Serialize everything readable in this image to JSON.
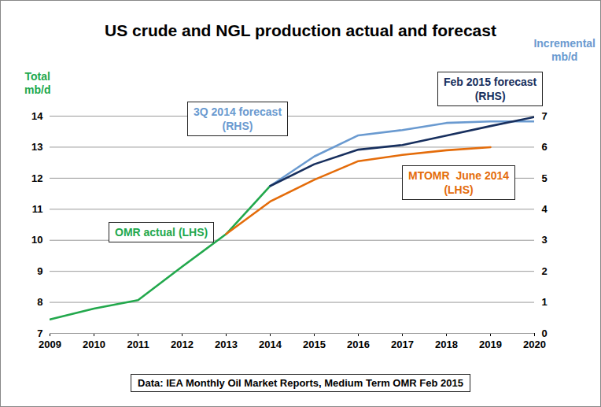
{
  "chart_data": {
    "type": "line",
    "title": "US crude and NGL production actual and forecast",
    "ylabel": "Total\nmb/d",
    "y2label": "Incremental\nmb/d",
    "caption": "Data: IEA Monthly Oil Market Reports, Medium Term OMR Feb 2015",
    "x": [
      2009,
      2010,
      2011,
      2012,
      2013,
      2014,
      2015,
      2016,
      2017,
      2018,
      2019,
      2020
    ],
    "xlim": [
      2009,
      2020
    ],
    "xticks": [
      2009,
      2010,
      2011,
      2012,
      2013,
      2014,
      2015,
      2016,
      2017,
      2018,
      2019,
      2020
    ],
    "ylim": [
      7,
      14
    ],
    "yticks": [
      7,
      8,
      9,
      10,
      11,
      12,
      13,
      14
    ],
    "y2lim": [
      0,
      7
    ],
    "y2ticks": [
      0,
      1,
      2,
      3,
      4,
      5,
      6,
      7
    ],
    "grid": true,
    "series": [
      {
        "name": "OMR actual (LHS)",
        "color": "#22a84c",
        "values": [
          7.45,
          7.8,
          8.07,
          9.15,
          10.2,
          11.75,
          null,
          null,
          null,
          null,
          null,
          null
        ]
      },
      {
        "name": "MTOMR  June 2014 (LHS)",
        "color": "#e46c0a",
        "values": [
          null,
          null,
          null,
          null,
          10.2,
          11.25,
          11.95,
          12.55,
          12.75,
          12.9,
          13.0,
          null
        ]
      },
      {
        "name": "3Q 2014 forecast (RHS)",
        "color": "#6a9ad0",
        "axis": "y2",
        "values": [
          null,
          null,
          null,
          null,
          null,
          4.75,
          5.7,
          6.38,
          6.55,
          6.78,
          6.83,
          6.83
        ]
      },
      {
        "name": "Feb 2015 forecast (RHS)",
        "color": "#172f5e",
        "axis": "y2",
        "values": [
          null,
          null,
          null,
          null,
          null,
          4.75,
          5.45,
          5.92,
          6.07,
          6.37,
          6.68,
          6.97
        ]
      }
    ]
  }
}
